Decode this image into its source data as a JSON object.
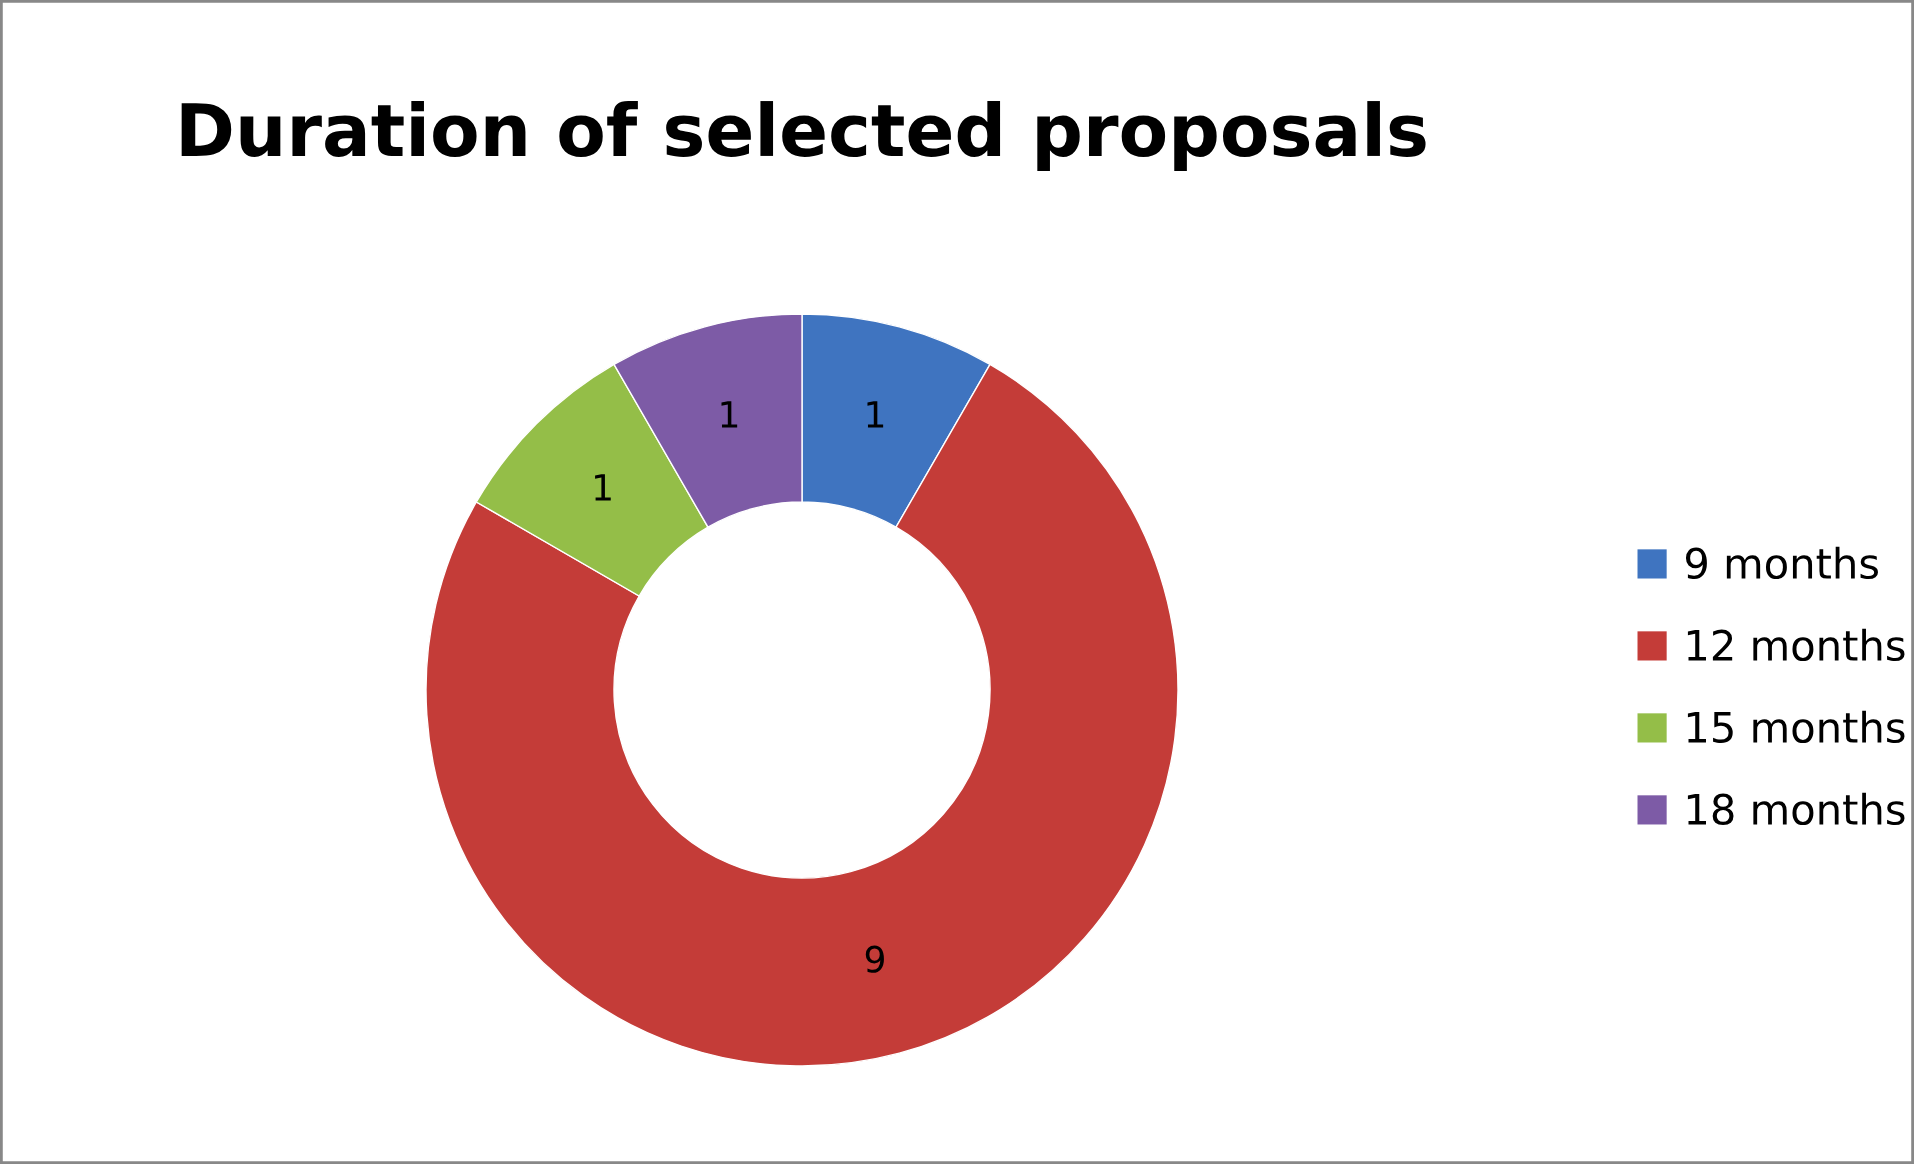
{
  "chart_data": {
    "type": "donut",
    "title": "Duration of selected proposals",
    "categories": [
      "9 months",
      "12 months",
      "15 months",
      "18 months"
    ],
    "values": [
      1,
      9,
      1,
      1
    ],
    "colors": [
      "#3f74c0",
      "#c43c38",
      "#94be48",
      "#7d5ba6"
    ],
    "data_labels": true,
    "legend": "right"
  }
}
